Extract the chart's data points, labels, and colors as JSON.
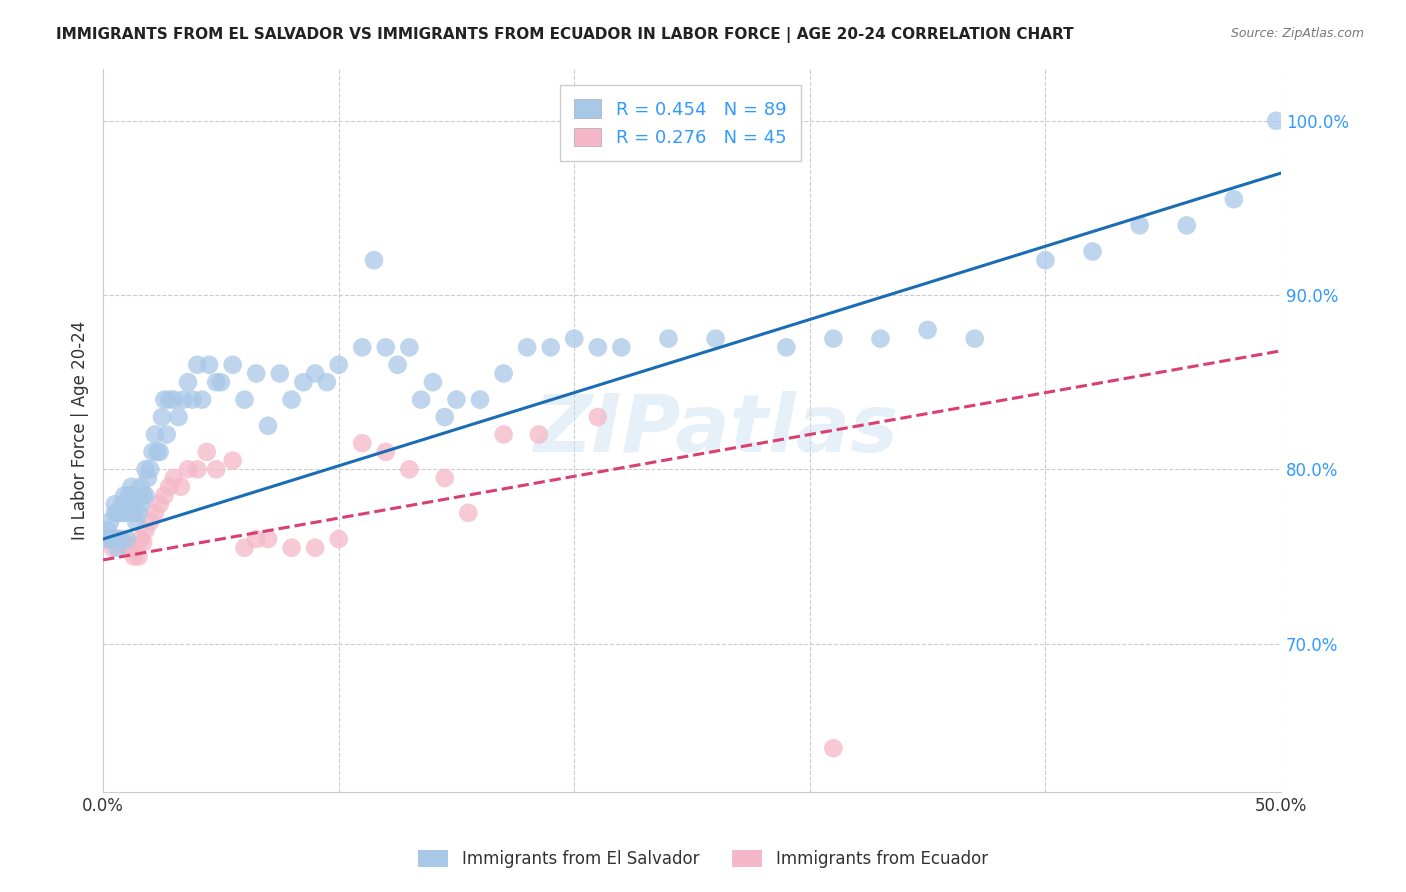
{
  "title": "IMMIGRANTS FROM EL SALVADOR VS IMMIGRANTS FROM ECUADOR IN LABOR FORCE | AGE 20-24 CORRELATION CHART",
  "source": "Source: ZipAtlas.com",
  "ylabel": "In Labor Force | Age 20-24",
  "xlim": [
    0.0,
    0.5
  ],
  "ylim": [
    0.615,
    1.03
  ],
  "yticks": [
    0.7,
    0.8,
    0.9,
    1.0
  ],
  "ytick_labels": [
    "70.0%",
    "80.0%",
    "90.0%",
    "100.0%"
  ],
  "xticks": [
    0.0,
    0.1,
    0.2,
    0.3,
    0.4,
    0.5
  ],
  "xtick_labels": [
    "0.0%",
    "",
    "",
    "",
    "",
    "50.0%"
  ],
  "legend_r1": "R = 0.454",
  "legend_n1": "N = 89",
  "legend_r2": "R = 0.276",
  "legend_n2": "N = 45",
  "color_blue": "#a8c8e8",
  "color_pink": "#f4b8c8",
  "line_blue": "#1a6db5",
  "line_pink": "#d94070",
  "tick_color": "#3399ff",
  "watermark": "ZIPatlas",
  "blue_scatter_x": [
    0.001,
    0.002,
    0.003,
    0.004,
    0.005,
    0.005,
    0.006,
    0.006,
    0.007,
    0.008,
    0.008,
    0.009,
    0.009,
    0.01,
    0.01,
    0.011,
    0.011,
    0.012,
    0.012,
    0.013,
    0.013,
    0.014,
    0.014,
    0.015,
    0.015,
    0.016,
    0.016,
    0.017,
    0.018,
    0.018,
    0.019,
    0.02,
    0.021,
    0.022,
    0.023,
    0.024,
    0.025,
    0.026,
    0.027,
    0.028,
    0.03,
    0.032,
    0.034,
    0.036,
    0.038,
    0.04,
    0.042,
    0.045,
    0.048,
    0.05,
    0.055,
    0.06,
    0.065,
    0.07,
    0.075,
    0.08,
    0.085,
    0.09,
    0.095,
    0.1,
    0.11,
    0.115,
    0.12,
    0.125,
    0.13,
    0.135,
    0.14,
    0.145,
    0.15,
    0.16,
    0.17,
    0.18,
    0.19,
    0.2,
    0.21,
    0.22,
    0.24,
    0.26,
    0.29,
    0.31,
    0.33,
    0.35,
    0.37,
    0.4,
    0.42,
    0.44,
    0.46,
    0.48,
    0.498
  ],
  "blue_scatter_y": [
    0.76,
    0.765,
    0.77,
    0.76,
    0.775,
    0.78,
    0.755,
    0.775,
    0.76,
    0.775,
    0.78,
    0.775,
    0.785,
    0.76,
    0.78,
    0.78,
    0.785,
    0.775,
    0.79,
    0.775,
    0.785,
    0.77,
    0.785,
    0.775,
    0.785,
    0.78,
    0.79,
    0.785,
    0.785,
    0.8,
    0.795,
    0.8,
    0.81,
    0.82,
    0.81,
    0.81,
    0.83,
    0.84,
    0.82,
    0.84,
    0.84,
    0.83,
    0.84,
    0.85,
    0.84,
    0.86,
    0.84,
    0.86,
    0.85,
    0.85,
    0.86,
    0.84,
    0.855,
    0.825,
    0.855,
    0.84,
    0.85,
    0.855,
    0.85,
    0.86,
    0.87,
    0.92,
    0.87,
    0.86,
    0.87,
    0.84,
    0.85,
    0.83,
    0.84,
    0.84,
    0.855,
    0.87,
    0.87,
    0.875,
    0.87,
    0.87,
    0.875,
    0.875,
    0.87,
    0.875,
    0.875,
    0.88,
    0.875,
    0.92,
    0.925,
    0.94,
    0.94,
    0.955,
    1.0
  ],
  "pink_scatter_x": [
    0.001,
    0.002,
    0.003,
    0.004,
    0.005,
    0.006,
    0.007,
    0.008,
    0.009,
    0.01,
    0.011,
    0.012,
    0.013,
    0.014,
    0.015,
    0.016,
    0.017,
    0.018,
    0.02,
    0.022,
    0.024,
    0.026,
    0.028,
    0.03,
    0.033,
    0.036,
    0.04,
    0.044,
    0.048,
    0.055,
    0.06,
    0.065,
    0.07,
    0.08,
    0.09,
    0.1,
    0.11,
    0.12,
    0.13,
    0.145,
    0.155,
    0.17,
    0.185,
    0.21,
    0.31
  ],
  "pink_scatter_y": [
    0.76,
    0.76,
    0.76,
    0.755,
    0.76,
    0.76,
    0.76,
    0.758,
    0.758,
    0.755,
    0.755,
    0.755,
    0.75,
    0.755,
    0.75,
    0.76,
    0.758,
    0.765,
    0.77,
    0.775,
    0.78,
    0.785,
    0.79,
    0.795,
    0.79,
    0.8,
    0.8,
    0.81,
    0.8,
    0.805,
    0.755,
    0.76,
    0.76,
    0.755,
    0.755,
    0.76,
    0.815,
    0.81,
    0.8,
    0.795,
    0.775,
    0.82,
    0.82,
    0.83,
    0.64
  ],
  "blue_line_x": [
    0.0,
    0.5
  ],
  "blue_line_y": [
    0.76,
    0.97
  ],
  "pink_line_x": [
    0.0,
    0.5
  ],
  "pink_line_y": [
    0.748,
    0.868
  ]
}
